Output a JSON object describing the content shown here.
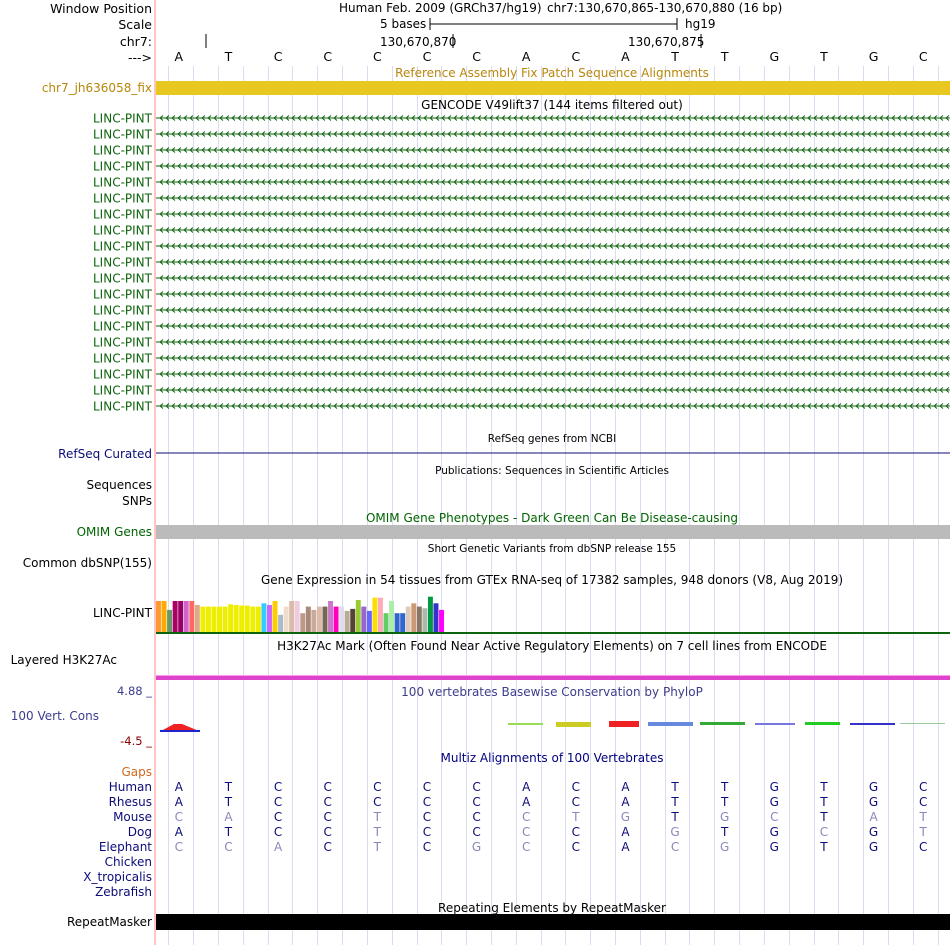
{
  "colors": {
    "label_black": "#000000",
    "gene_green": "#0c640c",
    "refseq_blue": "#0c0c78",
    "fix_patch_gold": "#b8860b",
    "patch_bar_yellow": "#e8c820",
    "omim_green": "#006400",
    "gap_orange": "#d2691e",
    "h3k27ac_magenta": "#dd44cc",
    "phylop_blue": "#3c3c8c",
    "phylop_neg": "#8b0000",
    "grid_line": "#ccccee",
    "red_divider": "#ff8888",
    "exact_base": "#0c0c78",
    "mismatch_base": "#8888bb"
  },
  "header": {
    "window_position_label": "Window Position",
    "scale_label": "Scale",
    "chr_label": "chr7:",
    "arrow_label": "--->",
    "assembly_title": "Human Feb. 2009 (GRCh37/hg19)",
    "position_text": "chr7:130,670,865-130,670,880 (16 bp)",
    "scale_text": "5 bases",
    "db_text": "hg19",
    "coord_left": "130,670,870",
    "coord_right": "130,670,875"
  },
  "sequence": [
    "A",
    "T",
    "C",
    "C",
    "C",
    "C",
    "C",
    "A",
    "C",
    "A",
    "T",
    "T",
    "G",
    "T",
    "G",
    "C"
  ],
  "fix_patch": {
    "title": "Reference Assembly Fix Patch Sequence Alignments",
    "label": "chr7_jh636058_fix"
  },
  "gencode": {
    "title": "GENCODE V49lift37 (144 items filtered out)",
    "items": [
      "LINC-PINT",
      "LINC-PINT",
      "LINC-PINT",
      "LINC-PINT",
      "LINC-PINT",
      "LINC-PINT",
      "LINC-PINT",
      "LINC-PINT",
      "LINC-PINT",
      "LINC-PINT",
      "LINC-PINT",
      "LINC-PINT",
      "LINC-PINT",
      "LINC-PINT",
      "LINC-PINT",
      "LINC-PINT",
      "LINC-PINT",
      "LINC-PINT",
      "LINC-PINT"
    ]
  },
  "refseq": {
    "title": "RefSeq genes from NCBI",
    "label": "RefSeq Curated"
  },
  "publications": {
    "title": "Publications: Sequences in Scientific Articles",
    "label1": "Sequences",
    "label2": "SNPs"
  },
  "omim": {
    "title": "OMIM Gene Phenotypes - Dark Green Can Be Disease-causing",
    "label": "OMIM Genes"
  },
  "dbsnp": {
    "title": "Short Genetic Variants from dbSNP release 155",
    "label": "Common dbSNP(155)"
  },
  "gtex": {
    "title": "Gene Expression in 54 tissues from GTEx RNA-seq of 17382 samples, 948 donors (V8, Aug 2019)",
    "label": "LINC-PINT",
    "bars": [
      {
        "c": "#ff9933",
        "v": 0.97
      },
      {
        "c": "#ffaa00",
        "v": 0.97
      },
      {
        "c": "#669966",
        "v": 0.7
      },
      {
        "c": "#aa0066",
        "v": 0.97
      },
      {
        "c": "#990066",
        "v": 0.97
      },
      {
        "c": "#cc66cc",
        "v": 0.97
      },
      {
        "c": "#ff6666",
        "v": 0.97
      },
      {
        "c": "#ddaa88",
        "v": 0.85
      },
      {
        "c": "#eeee00",
        "v": 0.8
      },
      {
        "c": "#eeee00",
        "v": 0.8
      },
      {
        "c": "#eeee00",
        "v": 0.8
      },
      {
        "c": "#eeee00",
        "v": 0.8
      },
      {
        "c": "#eeee00",
        "v": 0.8
      },
      {
        "c": "#eeee00",
        "v": 0.87
      },
      {
        "c": "#eeee00",
        "v": 0.85
      },
      {
        "c": "#eeee00",
        "v": 0.83
      },
      {
        "c": "#eeee00",
        "v": 0.83
      },
      {
        "c": "#eeee00",
        "v": 0.8
      },
      {
        "c": "#eeee00",
        "v": 0.8
      },
      {
        "c": "#33ccff",
        "v": 0.9
      },
      {
        "c": "#cc66ff",
        "v": 0.85
      },
      {
        "c": "#ffcc00",
        "v": 0.97
      },
      {
        "c": "#aabbcc",
        "v": 0.55
      },
      {
        "c": "#eeddcc",
        "v": 0.8
      },
      {
        "c": "#ddbbaa",
        "v": 0.97
      },
      {
        "c": "#eeccdd",
        "v": 0.97
      },
      {
        "c": "#bb9988",
        "v": 0.6
      },
      {
        "c": "#aa8877",
        "v": 0.8
      },
      {
        "c": "#ccaa99",
        "v": 0.7
      },
      {
        "c": "#ddbbaa",
        "v": 0.8
      },
      {
        "c": "#776655",
        "v": 0.8
      },
      {
        "c": "#cc77cc",
        "v": 0.97
      },
      {
        "c": "#ff00bb",
        "v": 0.8
      },
      {
        "c": "#ddddee",
        "v": 0.8
      },
      {
        "c": "#bbaa99",
        "v": 0.67
      },
      {
        "c": "#554433",
        "v": 0.73
      },
      {
        "c": "#99cc33",
        "v": 1.0
      },
      {
        "c": "#9966cc",
        "v": 0.8
      },
      {
        "c": "#6666ff",
        "v": 0.67
      },
      {
        "c": "#ffdd00",
        "v": 1.07
      },
      {
        "c": "#ffaabb",
        "v": 1.07
      },
      {
        "c": "#66cc66",
        "v": 0.6
      },
      {
        "c": "#aaeeaa",
        "v": 0.97
      },
      {
        "c": "#3366cc",
        "v": 0.6
      },
      {
        "c": "#3366cc",
        "v": 0.6
      },
      {
        "c": "#ddccbb",
        "v": 0.8
      },
      {
        "c": "#cc9977",
        "v": 0.9
      },
      {
        "c": "#887766",
        "v": 0.8
      },
      {
        "c": "#aabbaa",
        "v": 0.75
      },
      {
        "c": "#009944",
        "v": 1.1
      },
      {
        "c": "#3333cc",
        "v": 0.9
      },
      {
        "c": "#ff00ff",
        "v": 0.7
      }
    ]
  },
  "h3k27ac": {
    "title": "H3K27Ac Mark (Often Found Near Active Regulatory Elements) on 7 cell lines from ENCODE",
    "label": "Layered H3K27Ac"
  },
  "phylop": {
    "title": "100 vertebrates Basewise Conservation by PhyloP",
    "label": "100 Vert. Cons",
    "max_label": "4.88 _",
    "min_label": "-4.5 _"
  },
  "multiz": {
    "title": "Multiz Alignments of 100 Vertebrates",
    "gaps_label": "Gaps",
    "species": [
      {
        "name": "Human",
        "bases": [
          "A",
          "T",
          "C",
          "C",
          "C",
          "C",
          "C",
          "A",
          "C",
          "A",
          "T",
          "T",
          "G",
          "T",
          "G",
          "C"
        ],
        "mism": []
      },
      {
        "name": "Rhesus",
        "bases": [
          "A",
          "T",
          "C",
          "C",
          "C",
          "C",
          "C",
          "A",
          "C",
          "A",
          "T",
          "T",
          "G",
          "T",
          "G",
          "C"
        ],
        "mism": []
      },
      {
        "name": "Mouse",
        "bases": [
          "C",
          "A",
          "C",
          "C",
          "T",
          "C",
          "C",
          "C",
          "T",
          "G",
          "T",
          "G",
          "C",
          "T",
          "A",
          "T"
        ],
        "mism": [
          0,
          1,
          4,
          7,
          8,
          9,
          11,
          12,
          14,
          15
        ]
      },
      {
        "name": "Dog",
        "bases": [
          "A",
          "T",
          "C",
          "C",
          "T",
          "C",
          "C",
          "C",
          "C",
          "A",
          "G",
          "T",
          "G",
          "C",
          "G",
          "T"
        ],
        "mism": [
          4,
          7,
          10,
          13,
          15
        ]
      },
      {
        "name": "Elephant",
        "bases": [
          "C",
          "C",
          "A",
          "C",
          "T",
          "C",
          "G",
          "C",
          "C",
          "A",
          "C",
          "G",
          "G",
          "T",
          "G",
          "C"
        ],
        "mism": [
          0,
          1,
          2,
          4,
          6,
          7,
          10,
          11
        ]
      },
      {
        "name": "Chicken",
        "bases": [],
        "mism": []
      },
      {
        "name": "X_tropicalis",
        "bases": [],
        "mism": []
      },
      {
        "name": "Zebrafish",
        "bases": [],
        "mism": []
      }
    ]
  },
  "repeatmasker": {
    "title": "Repeating Elements by RepeatMasker",
    "label": "RepeatMasker"
  }
}
